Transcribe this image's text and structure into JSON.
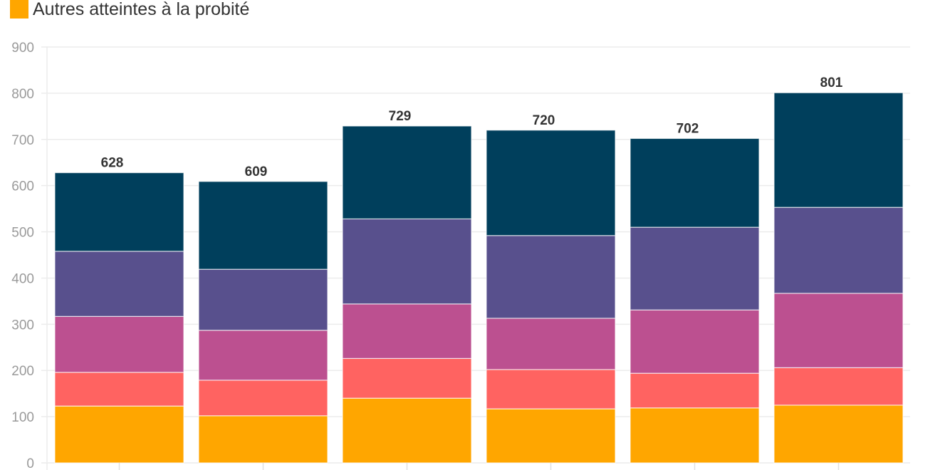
{
  "chart_data": {
    "type": "bar",
    "stacked": true,
    "categories": [
      "",
      "",
      "",
      "",
      "",
      ""
    ],
    "series": [
      {
        "name": "Autres atteintes à la probité",
        "color": "#ffa600",
        "values": [
          123,
          102,
          140,
          117,
          119,
          125
        ]
      },
      {
        "color": "#ff6361",
        "values": [
          73,
          77,
          86,
          85,
          75,
          81
        ]
      },
      {
        "color": "#bc5090",
        "values": [
          121,
          108,
          118,
          111,
          137,
          161
        ]
      },
      {
        "color": "#58508d",
        "values": [
          141,
          132,
          184,
          179,
          179,
          186
        ]
      },
      {
        "color": "#003f5c",
        "values": [
          170,
          190,
          201,
          228,
          192,
          248
        ]
      }
    ],
    "totals": [
      628,
      609,
      729,
      720,
      702,
      801
    ],
    "ylim": [
      0,
      900
    ],
    "yticks": [
      0,
      100,
      200,
      300,
      400,
      500,
      600,
      700,
      800,
      900
    ],
    "grid": true,
    "legend_position": "top-left",
    "title": "",
    "xlabel": "",
    "ylabel": ""
  }
}
